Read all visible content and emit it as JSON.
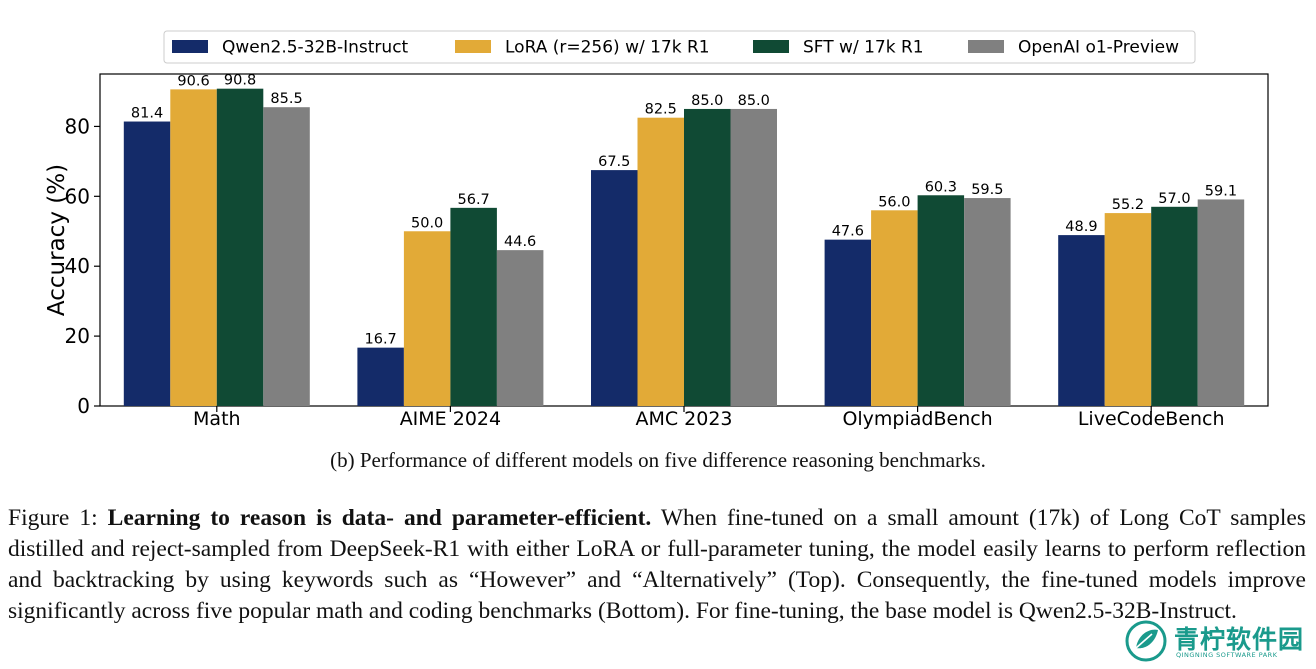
{
  "chart_data": {
    "type": "bar",
    "title": "",
    "xlabel": "",
    "ylabel": "Accuracy (%)",
    "ylim": [
      0,
      95
    ],
    "yticks": [
      0,
      20,
      40,
      60,
      80
    ],
    "grid": false,
    "legend_position": "top-center",
    "categories": [
      "Math",
      "AIME 2024",
      "AMC 2023",
      "OlympiadBench",
      "LiveCodeBench"
    ],
    "series": [
      {
        "name": "Qwen2.5-32B-Instruct",
        "color": "#142b69",
        "values": [
          81.4,
          16.7,
          67.5,
          47.6,
          48.9
        ]
      },
      {
        "name": "LoRA (r=256) w/ 17k R1",
        "color": "#e2aa37",
        "values": [
          90.6,
          50.0,
          82.5,
          56.0,
          55.2
        ]
      },
      {
        "name": "SFT w/ 17k R1",
        "color": "#104a34",
        "values": [
          90.8,
          56.7,
          85.0,
          60.3,
          57.0
        ]
      },
      {
        "name": "OpenAI o1-Preview",
        "color": "#808080",
        "values": [
          85.5,
          44.6,
          85.0,
          59.5,
          59.1
        ]
      }
    ]
  },
  "subcaption": "(b) Performance of different models on five difference reasoning benchmarks.",
  "caption": {
    "label": "Figure 1: ",
    "bold": "Learning to reason is data- and parameter-efficient.",
    "body": " When fine-tuned on a small amount (17k) of Long CoT samples distilled and reject-sampled from DeepSeek-R1 with either LoRA or full-parameter tuning, the model easily learns to perform reflection and backtracking by using keywords such as “However” and “Alternatively” (Top). Consequently, the fine-tuned models improve significantly across five popular math and coding benchmarks (Bottom). For fine-tuning, the base model is Qwen2.5-32B-Instruct."
  },
  "watermark": {
    "text": "青柠软件园",
    "subtext": "QINGNING SOFTWARE PARK",
    "color": "#1a9a8c"
  }
}
